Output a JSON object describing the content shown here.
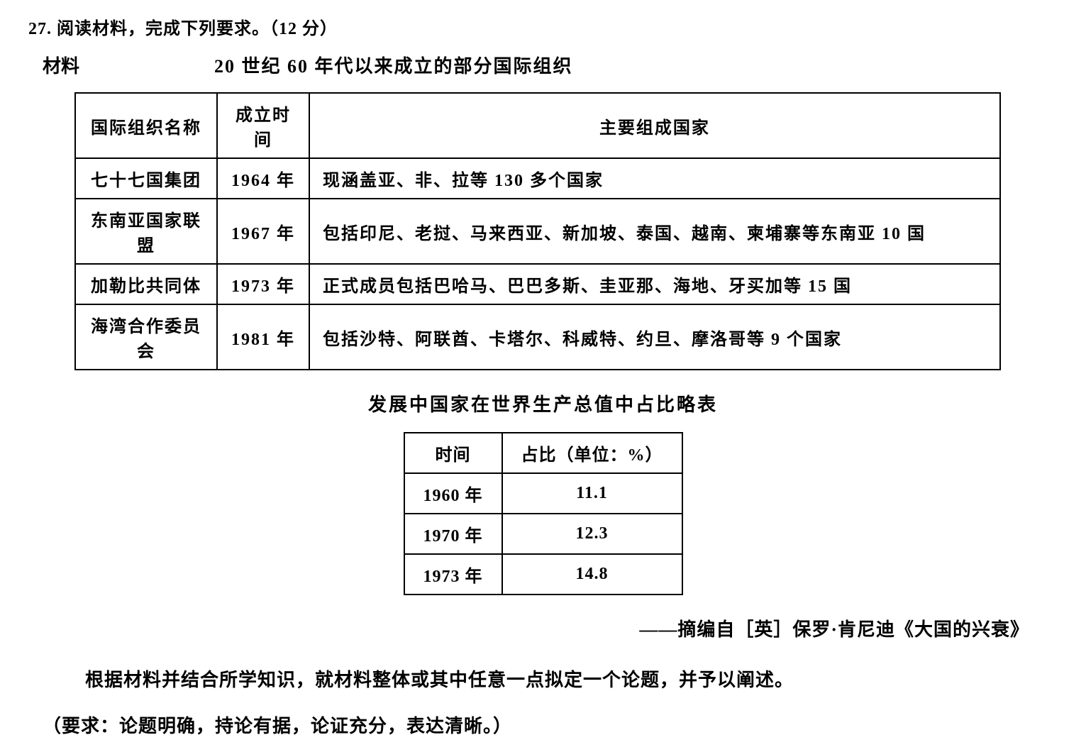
{
  "question_header": "27. 阅读材料，完成下列要求。（12 分）",
  "material_label": "材料",
  "title1": "20 世纪 60 年代以来成立的部分国际组织",
  "table1": {
    "columns": [
      "国际组织名称",
      "成立时间",
      "主要组成国家"
    ],
    "rows": [
      [
        "七十七国集团",
        "1964 年",
        "现涵盖亚、非、拉等 130 多个国家"
      ],
      [
        "东南亚国家联盟",
        "1967 年",
        "包括印尼、老挝、马来西亚、新加坡、泰国、越南、柬埔寨等东南亚 10 国"
      ],
      [
        "加勒比共同体",
        "1973 年",
        "正式成员包括巴哈马、巴巴多斯、圭亚那、海地、牙买加等 15 国"
      ],
      [
        "海湾合作委员会",
        "1981 年",
        "包括沙特、阿联酋、卡塔尔、科威特、约旦、摩洛哥等 9 个国家"
      ]
    ]
  },
  "title2": "发展中国家在世界生产总值中占比略表",
  "table2": {
    "columns": [
      "时间",
      "占比（单位：%）"
    ],
    "rows": [
      [
        "1960 年",
        "11.1"
      ],
      [
        "1970 年",
        "12.3"
      ],
      [
        "1973 年",
        "14.8"
      ]
    ]
  },
  "source": "——摘编自［英］保罗·肯尼迪《大国的兴衰》",
  "instruction": "根据材料并结合所学知识，就材料整体或其中任意一点拟定一个论题，并予以阐述。",
  "requirement": "（要求：论题明确，持论有据，论证充分，表达清晰。）"
}
